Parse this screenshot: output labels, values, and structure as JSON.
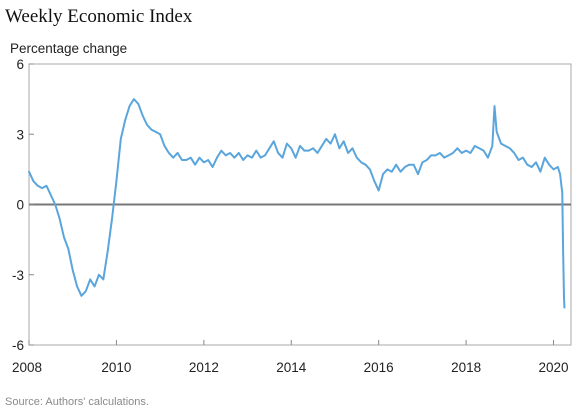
{
  "chart_data": {
    "type": "line",
    "title": "Weekly Economic Index",
    "ylabel": "Percentage change",
    "source": "Source: Authors' calculations.",
    "xlim": [
      2008,
      2020.4
    ],
    "ylim": [
      -6,
      6
    ],
    "x_ticks": [
      2008,
      2010,
      2012,
      2014,
      2016,
      2018,
      2020
    ],
    "x_tick_labels": [
      "2008",
      "2010",
      "2012",
      "2014",
      "2016",
      "2018",
      "2020"
    ],
    "y_ticks": [
      6,
      3,
      0,
      -3,
      -6
    ],
    "y_tick_labels": [
      "6",
      "3",
      "0",
      "-3",
      "-6"
    ],
    "zero_line": true,
    "grid": false,
    "colors": {
      "series": "#5aa5dc",
      "axis": "#888888",
      "zero_line": "#777777",
      "frame": "#aaaaaa"
    },
    "series": [
      {
        "points": [
          [
            2008.0,
            1.4
          ],
          [
            2008.1,
            1.0
          ],
          [
            2008.2,
            0.8
          ],
          [
            2008.3,
            0.7
          ],
          [
            2008.4,
            0.8
          ],
          [
            2008.5,
            0.4
          ],
          [
            2008.6,
            0.0
          ],
          [
            2008.7,
            -0.6
          ],
          [
            2008.8,
            -1.4
          ],
          [
            2008.9,
            -1.9
          ],
          [
            2009.0,
            -2.8
          ],
          [
            2009.1,
            -3.5
          ],
          [
            2009.2,
            -3.9
          ],
          [
            2009.3,
            -3.7
          ],
          [
            2009.4,
            -3.2
          ],
          [
            2009.5,
            -3.5
          ],
          [
            2009.6,
            -3.0
          ],
          [
            2009.7,
            -3.2
          ],
          [
            2009.8,
            -2.0
          ],
          [
            2009.9,
            -0.6
          ],
          [
            2010.0,
            1.0
          ],
          [
            2010.1,
            2.8
          ],
          [
            2010.2,
            3.6
          ],
          [
            2010.3,
            4.2
          ],
          [
            2010.4,
            4.5
          ],
          [
            2010.5,
            4.3
          ],
          [
            2010.6,
            3.8
          ],
          [
            2010.7,
            3.4
          ],
          [
            2010.8,
            3.2
          ],
          [
            2010.9,
            3.1
          ],
          [
            2011.0,
            3.0
          ],
          [
            2011.1,
            2.5
          ],
          [
            2011.2,
            2.2
          ],
          [
            2011.3,
            2.0
          ],
          [
            2011.4,
            2.2
          ],
          [
            2011.5,
            1.9
          ],
          [
            2011.6,
            1.9
          ],
          [
            2011.7,
            2.0
          ],
          [
            2011.8,
            1.7
          ],
          [
            2011.9,
            2.0
          ],
          [
            2012.0,
            1.8
          ],
          [
            2012.1,
            1.9
          ],
          [
            2012.2,
            1.6
          ],
          [
            2012.3,
            2.0
          ],
          [
            2012.4,
            2.3
          ],
          [
            2012.5,
            2.1
          ],
          [
            2012.6,
            2.2
          ],
          [
            2012.7,
            2.0
          ],
          [
            2012.8,
            2.2
          ],
          [
            2012.9,
            1.9
          ],
          [
            2013.0,
            2.1
          ],
          [
            2013.1,
            2.0
          ],
          [
            2013.2,
            2.3
          ],
          [
            2013.3,
            2.0
          ],
          [
            2013.4,
            2.1
          ],
          [
            2013.5,
            2.4
          ],
          [
            2013.6,
            2.7
          ],
          [
            2013.7,
            2.2
          ],
          [
            2013.8,
            2.0
          ],
          [
            2013.9,
            2.6
          ],
          [
            2014.0,
            2.4
          ],
          [
            2014.1,
            2.0
          ],
          [
            2014.2,
            2.5
          ],
          [
            2014.3,
            2.3
          ],
          [
            2014.4,
            2.3
          ],
          [
            2014.5,
            2.4
          ],
          [
            2014.6,
            2.2
          ],
          [
            2014.7,
            2.5
          ],
          [
            2014.8,
            2.8
          ],
          [
            2014.9,
            2.6
          ],
          [
            2015.0,
            3.0
          ],
          [
            2015.1,
            2.4
          ],
          [
            2015.2,
            2.7
          ],
          [
            2015.3,
            2.2
          ],
          [
            2015.4,
            2.4
          ],
          [
            2015.5,
            2.0
          ],
          [
            2015.6,
            1.8
          ],
          [
            2015.7,
            1.7
          ],
          [
            2015.8,
            1.5
          ],
          [
            2015.9,
            1.0
          ],
          [
            2016.0,
            0.6
          ],
          [
            2016.1,
            1.3
          ],
          [
            2016.2,
            1.5
          ],
          [
            2016.3,
            1.4
          ],
          [
            2016.4,
            1.7
          ],
          [
            2016.5,
            1.4
          ],
          [
            2016.6,
            1.6
          ],
          [
            2016.7,
            1.7
          ],
          [
            2016.8,
            1.7
          ],
          [
            2016.9,
            1.3
          ],
          [
            2017.0,
            1.8
          ],
          [
            2017.1,
            1.9
          ],
          [
            2017.2,
            2.1
          ],
          [
            2017.3,
            2.1
          ],
          [
            2017.4,
            2.2
          ],
          [
            2017.5,
            2.0
          ],
          [
            2017.6,
            2.1
          ],
          [
            2017.7,
            2.2
          ],
          [
            2017.8,
            2.4
          ],
          [
            2017.9,
            2.2
          ],
          [
            2018.0,
            2.3
          ],
          [
            2018.1,
            2.2
          ],
          [
            2018.2,
            2.5
          ],
          [
            2018.3,
            2.4
          ],
          [
            2018.4,
            2.3
          ],
          [
            2018.5,
            2.0
          ],
          [
            2018.6,
            2.5
          ],
          [
            2018.65,
            4.2
          ],
          [
            2018.7,
            3.1
          ],
          [
            2018.8,
            2.6
          ],
          [
            2018.9,
            2.5
          ],
          [
            2019.0,
            2.4
          ],
          [
            2019.1,
            2.2
          ],
          [
            2019.2,
            1.9
          ],
          [
            2019.3,
            2.0
          ],
          [
            2019.4,
            1.7
          ],
          [
            2019.5,
            1.6
          ],
          [
            2019.6,
            1.8
          ],
          [
            2019.7,
            1.4
          ],
          [
            2019.8,
            2.0
          ],
          [
            2019.9,
            1.7
          ],
          [
            2020.0,
            1.5
          ],
          [
            2020.1,
            1.6
          ],
          [
            2020.15,
            1.3
          ],
          [
            2020.2,
            0.5
          ],
          [
            2020.22,
            -2.0
          ],
          [
            2020.24,
            -4.0
          ],
          [
            2020.25,
            -4.4
          ]
        ]
      }
    ]
  }
}
